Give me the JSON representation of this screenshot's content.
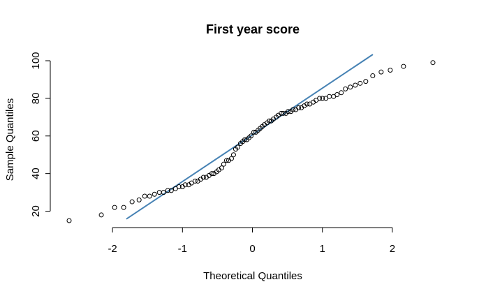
{
  "chart_data": {
    "type": "scatter",
    "title": "First year score",
    "xlabel": "Theoretical Quantiles",
    "ylabel": "Sample Quantiles",
    "xlim": [
      -2.62,
      2.62
    ],
    "ylim": [
      15,
      100
    ],
    "x_ticks": [
      -2,
      -1,
      0,
      1,
      2
    ],
    "y_ticks": [
      20,
      40,
      60,
      80,
      100
    ],
    "grid": false,
    "reference_line": {
      "color": "#4682b4",
      "intercept": 62.8,
      "slope": 24.0
    },
    "points": [
      [
        -2.62,
        15
      ],
      [
        -2.16,
        18
      ],
      [
        -1.97,
        22
      ],
      [
        -1.84,
        22
      ],
      [
        -1.72,
        25
      ],
      [
        -1.62,
        26
      ],
      [
        -1.54,
        28
      ],
      [
        -1.47,
        28
      ],
      [
        -1.4,
        29
      ],
      [
        -1.33,
        30
      ],
      [
        -1.27,
        30
      ],
      [
        -1.21,
        31
      ],
      [
        -1.16,
        31
      ],
      [
        -1.1,
        32
      ],
      [
        -1.05,
        33
      ],
      [
        -1.0,
        33
      ],
      [
        -0.96,
        34
      ],
      [
        -0.91,
        34
      ],
      [
        -0.87,
        35
      ],
      [
        -0.82,
        36
      ],
      [
        -0.78,
        36
      ],
      [
        -0.74,
        37
      ],
      [
        -0.7,
        38
      ],
      [
        -0.66,
        38
      ],
      [
        -0.62,
        39
      ],
      [
        -0.58,
        40
      ],
      [
        -0.55,
        40
      ],
      [
        -0.51,
        41
      ],
      [
        -0.48,
        42
      ],
      [
        -0.44,
        43
      ],
      [
        -0.41,
        45
      ],
      [
        -0.37,
        47
      ],
      [
        -0.34,
        47
      ],
      [
        -0.3,
        48
      ],
      [
        -0.27,
        50
      ],
      [
        -0.24,
        53
      ],
      [
        -0.21,
        54
      ],
      [
        -0.17,
        56
      ],
      [
        -0.14,
        57
      ],
      [
        -0.11,
        58
      ],
      [
        -0.08,
        58
      ],
      [
        -0.05,
        59
      ],
      [
        -0.02,
        60
      ],
      [
        0.02,
        62
      ],
      [
        0.05,
        62
      ],
      [
        0.08,
        63
      ],
      [
        0.11,
        64
      ],
      [
        0.14,
        65
      ],
      [
        0.17,
        66
      ],
      [
        0.21,
        67
      ],
      [
        0.24,
        68
      ],
      [
        0.27,
        68
      ],
      [
        0.3,
        69
      ],
      [
        0.34,
        70
      ],
      [
        0.37,
        71
      ],
      [
        0.41,
        72
      ],
      [
        0.44,
        72
      ],
      [
        0.48,
        72
      ],
      [
        0.51,
        73
      ],
      [
        0.55,
        73
      ],
      [
        0.58,
        74
      ],
      [
        0.62,
        74
      ],
      [
        0.66,
        75
      ],
      [
        0.7,
        75
      ],
      [
        0.74,
        76
      ],
      [
        0.78,
        77
      ],
      [
        0.82,
        77
      ],
      [
        0.87,
        78
      ],
      [
        0.91,
        79
      ],
      [
        0.96,
        80
      ],
      [
        1.0,
        80
      ],
      [
        1.05,
        80
      ],
      [
        1.1,
        81
      ],
      [
        1.16,
        81
      ],
      [
        1.21,
        82
      ],
      [
        1.27,
        83
      ],
      [
        1.33,
        85
      ],
      [
        1.4,
        86
      ],
      [
        1.47,
        87
      ],
      [
        1.54,
        88
      ],
      [
        1.62,
        89
      ],
      [
        1.72,
        92
      ],
      [
        1.84,
        94
      ],
      [
        1.97,
        95
      ],
      [
        2.16,
        97
      ],
      [
        2.58,
        99
      ]
    ]
  }
}
